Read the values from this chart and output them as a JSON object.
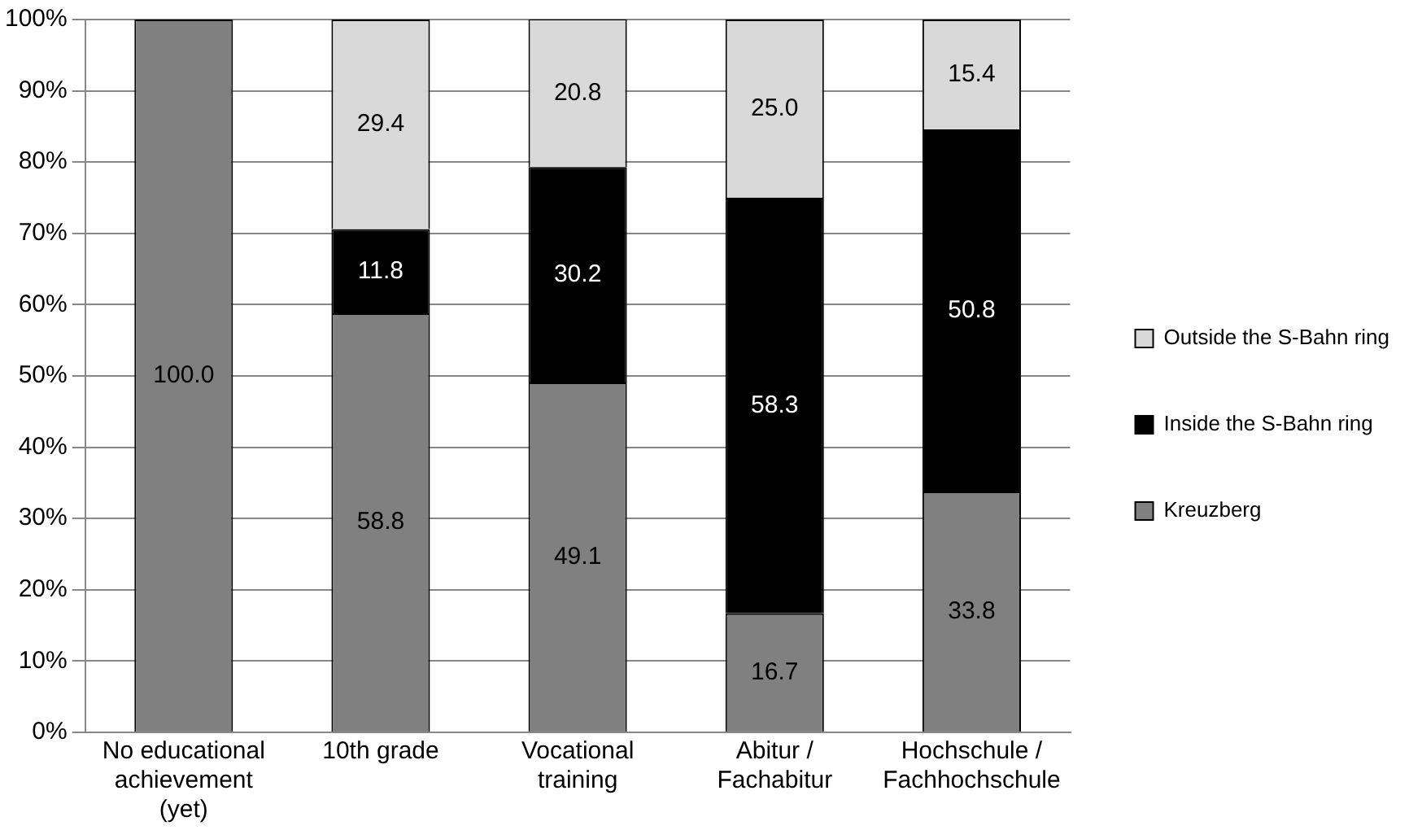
{
  "chart_data": {
    "type": "bar",
    "stacked": true,
    "categories": [
      "No educational achievement (yet)",
      "10th grade",
      "Vocational training",
      "Abitur / Fachabitur",
      "Hochschule / Fachhochschule"
    ],
    "series": [
      {
        "name": "Kreuzberg",
        "color": "#808080",
        "values": [
          100.0,
          58.8,
          49.1,
          16.7,
          33.8
        ],
        "value_labels": [
          "100.0",
          "58.8",
          "49.1",
          "16.7",
          "33.8"
        ]
      },
      {
        "name": "Inside the S-Bahn ring",
        "color": "#000000",
        "values": [
          null,
          11.8,
          30.2,
          58.3,
          50.8
        ],
        "value_labels": [
          null,
          "11.8",
          "30.2",
          "58.3",
          "50.8"
        ]
      },
      {
        "name": "Outside the S-Bahn ring",
        "color": "#d9d9d9",
        "values": [
          null,
          29.4,
          20.8,
          25.0,
          15.4
        ],
        "value_labels": [
          null,
          "29.4",
          "20.8",
          "25.0",
          "15.4"
        ]
      }
    ],
    "ylim": [
      0,
      100
    ],
    "yticks": [
      {
        "value": 0,
        "label": "0%"
      },
      {
        "value": 10,
        "label": "10%"
      },
      {
        "value": 20,
        "label": "20%"
      },
      {
        "value": 30,
        "label": "30%"
      },
      {
        "value": 40,
        "label": "40%"
      },
      {
        "value": 50,
        "label": "50%"
      },
      {
        "value": 60,
        "label": "60%"
      },
      {
        "value": 70,
        "label": "70%"
      },
      {
        "value": 80,
        "label": "80%"
      },
      {
        "value": 90,
        "label": "90%"
      },
      {
        "value": 100,
        "label": "100%"
      }
    ],
    "grid": "y",
    "legend": "right"
  }
}
